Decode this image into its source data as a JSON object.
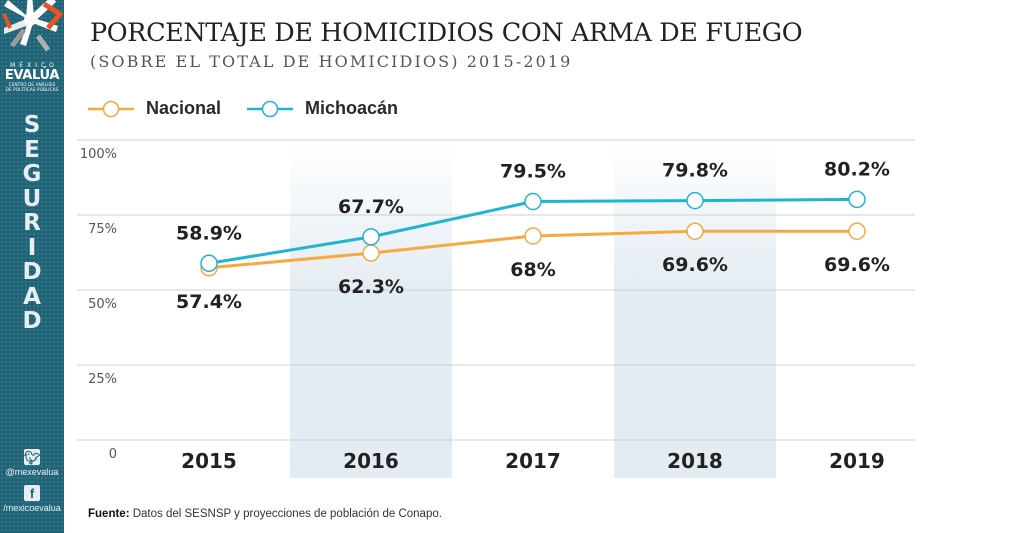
{
  "sidebar": {
    "brand_top": "MÉXICO",
    "brand_name": "EVALÚA",
    "brand_sub_1": "CENTRO DE ANÁLISIS",
    "brand_sub_2": "DE POLÍTICAS PÚBLICAS",
    "section_letters": [
      "S",
      "E",
      "G",
      "U",
      "R",
      "I",
      "D",
      "A",
      "D"
    ],
    "twitter_handle": "@mexevalua",
    "facebook_handle": "/mexicoevalua",
    "twitter_icon": "twitter-icon",
    "facebook_icon": "facebook-icon"
  },
  "header": {
    "title": "PORCENTAJE DE HOMICIDIOS CON ARMA DE FUEGO",
    "subtitle": "(SOBRE EL TOTAL DE HOMICIDIOS) 2015-2019"
  },
  "footer": {
    "source_label": "Fuente:",
    "source_text": " Datos del SESNSP y proyecciones de población de Conapo."
  },
  "colors": {
    "sidebar": "#1f6577",
    "nacional": "#f5a93e",
    "michoacan": "#22b3d3",
    "shade": "#e3ecf2",
    "grid": "#d0d0d0"
  },
  "chart_data": {
    "type": "line",
    "title": "PORCENTAJE DE HOMICIDIOS CON ARMA DE FUEGO",
    "subtitle": "(SOBRE EL TOTAL DE HOMICIDIOS) 2015-2019",
    "xlabel": "",
    "ylabel": "",
    "categories": [
      "2015",
      "2016",
      "2017",
      "2018",
      "2019"
    ],
    "ylim": [
      0,
      100
    ],
    "yticks": [
      0,
      25,
      50,
      75,
      100
    ],
    "ytick_labels": [
      "0",
      "25%",
      "50%",
      "75%",
      "100%"
    ],
    "grid": true,
    "legend_position": "top-left",
    "shaded_categories": [
      "2016",
      "2018"
    ],
    "series": [
      {
        "name": "Nacional",
        "color": "#f5a93e",
        "values": [
          57.4,
          62.3,
          68,
          69.6,
          69.6
        ],
        "labels": [
          "57.4%",
          "62.3%",
          "68%",
          "69.6%",
          "69.6%"
        ],
        "label_position": "below"
      },
      {
        "name": "Michoacán",
        "color": "#22b3d3",
        "values": [
          58.9,
          67.7,
          79.5,
          79.8,
          80.2
        ],
        "labels": [
          "58.9%",
          "67.7%",
          "79.5%",
          "79.8%",
          "80.2%"
        ],
        "label_position": "above"
      }
    ]
  }
}
